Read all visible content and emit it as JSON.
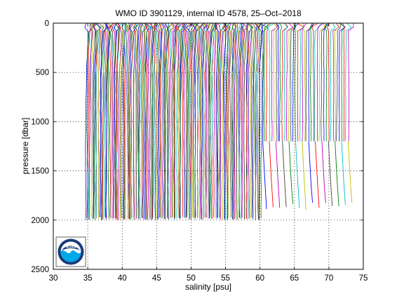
{
  "chart_data": {
    "type": "line",
    "title": "WMO ID 3901129, internal ID 4578, 25–Oct–2018",
    "xlabel": "salinity [psu]",
    "ylabel": "pressure [dbar]",
    "xlim": [
      30,
      75
    ],
    "ylim": [
      0,
      2500
    ],
    "y_reversed": true,
    "grid": true,
    "grid_style": "dotted",
    "x_ticks": [
      "30",
      "35",
      "40",
      "45",
      "50",
      "55",
      "60",
      "65",
      "70",
      "75"
    ],
    "y_ticks": [
      "0",
      "500",
      "1000",
      "1500",
      "2000",
      "2500"
    ],
    "x_tick_values": [
      30,
      35,
      40,
      45,
      50,
      55,
      60,
      65,
      70,
      75
    ],
    "y_tick_values": [
      0,
      500,
      1000,
      1500,
      2000,
      2500
    ],
    "series_note": "Waterfall of many sequential salinity profiles, each offset along the salinity axis; profiles reaching ~2000 dbar (offsets ~35–60 psu) and shorter profiles ending at ~1200 dbar with tails to ~1900 dbar (offsets ~60–73 psu).",
    "profile_count_full": 170,
    "profile_count_short": 40,
    "full_offset_range": [
      34.8,
      60.2
    ],
    "short_offset_range": [
      60.4,
      72.8
    ],
    "full_max_pressure": 2000,
    "short_max_pressure": 1200,
    "short_tail_pressure": 1900,
    "colors": [
      "#0000ff",
      "#008000",
      "#ff0000",
      "#00bfbf",
      "#bf00bf",
      "#bfbf00",
      "#404040"
    ]
  },
  "logo": {
    "text": "NOAA",
    "colors": {
      "navy": "#1a3a7a",
      "sky": "#00a9e8",
      "white": "#ffffff"
    }
  }
}
